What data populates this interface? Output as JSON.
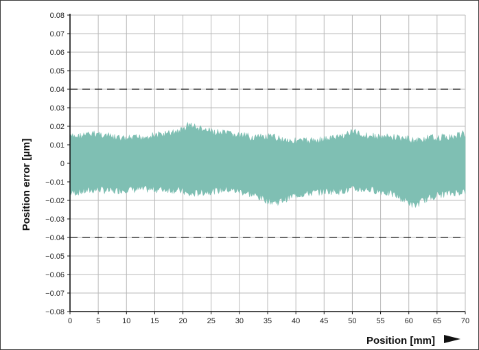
{
  "chart_data": {
    "type": "area",
    "xlabel": "Position [mm]",
    "ylabel": "Position error [µm]",
    "xlim": [
      0,
      70
    ],
    "ylim": [
      -0.08,
      0.08
    ],
    "x_ticks": [
      0,
      5,
      10,
      15,
      20,
      25,
      30,
      35,
      40,
      45,
      50,
      55,
      60,
      65,
      70
    ],
    "x_tick_labels": [
      "0",
      "5",
      "10",
      "15",
      "20",
      "25",
      "30",
      "35",
      "40",
      "45",
      "50",
      "55",
      "60",
      "65",
      "70"
    ],
    "y_ticks": [
      0.08,
      0.07,
      0.06,
      0.05,
      0.04,
      0.03,
      0.02,
      0.01,
      0,
      -0.01,
      -0.02,
      -0.03,
      -0.04,
      -0.05,
      -0.06,
      -0.07,
      -0.08
    ],
    "y_tick_labels": [
      "0.08",
      "0.07",
      "0.06",
      "0.05",
      "0.04",
      "0.03",
      "0.02",
      "0.01",
      "0",
      "−0.01",
      "−0.02",
      "−0.03",
      "−0.04",
      "−0.05",
      "−0.06",
      "−0.07",
      "−0.08"
    ],
    "grid": true,
    "series": [
      {
        "type": "band",
        "color": "#7fbfb3",
        "x": [
          0,
          2.5,
          5,
          7.5,
          10,
          12.5,
          15,
          17.5,
          20,
          21,
          22.5,
          25,
          27.5,
          30,
          32.5,
          35,
          36.5,
          37.5,
          40,
          42.5,
          45,
          47.5,
          50,
          52.5,
          55,
          57.5,
          60,
          61,
          62.5,
          65,
          67.5,
          70
        ],
        "upper": [
          0.016,
          0.017,
          0.018,
          0.016,
          0.015,
          0.016,
          0.017,
          0.018,
          0.02,
          0.023,
          0.021,
          0.019,
          0.018,
          0.017,
          0.016,
          0.016,
          0.016,
          0.015,
          0.014,
          0.014,
          0.015,
          0.016,
          0.019,
          0.017,
          0.016,
          0.016,
          0.015,
          0.014,
          0.015,
          0.016,
          0.016,
          0.018
        ],
        "lower": [
          -0.018,
          -0.017,
          -0.016,
          -0.017,
          -0.016,
          -0.016,
          -0.016,
          -0.016,
          -0.017,
          -0.019,
          -0.018,
          -0.017,
          -0.016,
          -0.017,
          -0.019,
          -0.022,
          -0.023,
          -0.022,
          -0.019,
          -0.018,
          -0.017,
          -0.017,
          -0.016,
          -0.016,
          -0.017,
          -0.019,
          -0.023,
          -0.025,
          -0.022,
          -0.019,
          -0.018,
          -0.017
        ]
      }
    ],
    "reference_lines": [
      {
        "y": 0.04,
        "style": "dashed"
      },
      {
        "y": -0.04,
        "style": "dashed"
      }
    ],
    "colors": {
      "band": "#7fbfb3",
      "grid": "#b9b9b9",
      "axis": "#111111",
      "reference": "#111111"
    },
    "annotation": {
      "x_arrow": "right-pointing filled triangle after x-axis title"
    }
  }
}
